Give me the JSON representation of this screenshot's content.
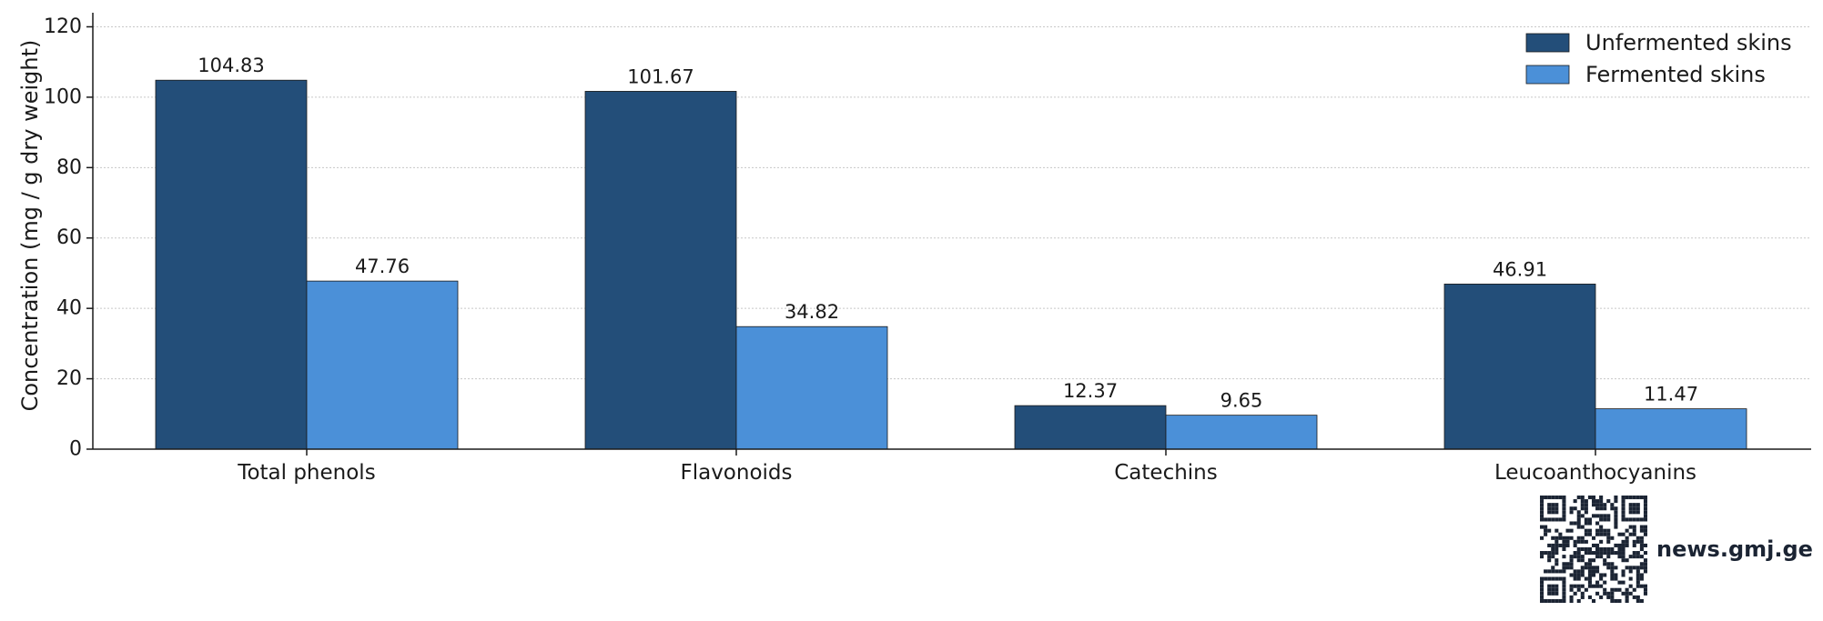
{
  "chart_data": {
    "type": "bar",
    "categories": [
      "Total phenols",
      "Flavonoids",
      "Catechins",
      "Leucoanthocyanins"
    ],
    "series": [
      {
        "name": "Unfermented skins",
        "color": "#234e79",
        "values": [
          104.83,
          101.67,
          12.37,
          46.91
        ]
      },
      {
        "name": "Fermented skins",
        "color": "#4b90d8",
        "values": [
          47.76,
          34.82,
          9.65,
          11.47
        ]
      }
    ],
    "data_labels": [
      [
        "104.83",
        "101.67",
        "12.37",
        "46.91"
      ],
      [
        "47.76",
        "34.82",
        "9.65",
        "11.47"
      ]
    ],
    "title": "",
    "xlabel": "",
    "ylabel": "Concentration (mg / g dry weight)",
    "ylim": [
      0,
      124
    ],
    "yticks": [
      0,
      20,
      40,
      60,
      80,
      100,
      120
    ],
    "ytick_labels": [
      "0",
      "20",
      "40",
      "60",
      "80",
      "100",
      "120"
    ],
    "grid": "horizontal dotted",
    "legend_position": "top-right"
  },
  "watermark": {
    "text": "news.gmj.ge",
    "icon": "qr-code-icon"
  }
}
